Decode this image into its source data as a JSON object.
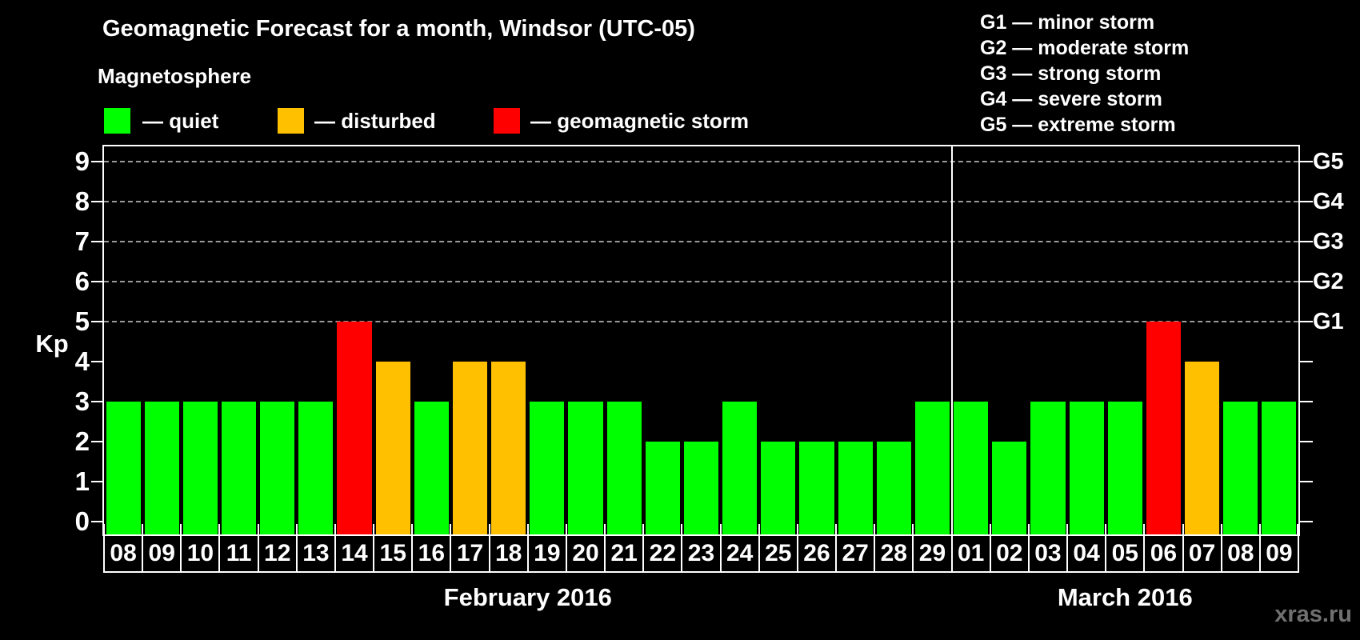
{
  "title": "Geomagnetic Forecast for a month, Windsor (UTC-05)",
  "magnetosphere_legend": {
    "heading": "Magnetosphere",
    "items": [
      {
        "id": "quiet",
        "label": "— quiet",
        "color": "#00ff00"
      },
      {
        "id": "disturbed",
        "label": "— disturbed",
        "color": "#ffc000"
      },
      {
        "id": "storm",
        "label": "— geomagnetic storm",
        "color": "#ff0000"
      }
    ]
  },
  "storm_scale_legend": [
    "G1 — minor storm",
    "G2 — moderate storm",
    "G3 — strong storm",
    "G4 — severe storm",
    "G5 — extreme storm"
  ],
  "watermark": "xras.ru",
  "chart_data": {
    "type": "bar",
    "title": "Geomagnetic Forecast for a month, Windsor (UTC-05)",
    "ylabel": "Kp",
    "ylim": [
      0,
      9
    ],
    "y_ticks": [
      0,
      1,
      2,
      3,
      4,
      5,
      6,
      7,
      8,
      9
    ],
    "gridlines_at_kp": [
      5,
      6,
      7,
      8,
      9
    ],
    "grid": "dashed horizontal at G-storm levels only",
    "legend_position": "top",
    "right_axis": [
      {
        "label": "G1",
        "kp": 5
      },
      {
        "label": "G2",
        "kp": 6
      },
      {
        "label": "G3",
        "kp": 7
      },
      {
        "label": "G4",
        "kp": 8
      },
      {
        "label": "G5",
        "kp": 9
      }
    ],
    "status_colors": {
      "quiet": "#00ff00",
      "disturbed": "#ffc000",
      "storm": "#ff0000"
    },
    "months": [
      {
        "label": "February 2016",
        "days": [
          "08",
          "09",
          "10",
          "11",
          "12",
          "13",
          "14",
          "15",
          "16",
          "17",
          "18",
          "19",
          "20",
          "21",
          "22",
          "23",
          "24",
          "25",
          "26",
          "27",
          "28",
          "29"
        ],
        "kp": [
          3,
          3,
          3,
          3,
          3,
          3,
          5,
          4,
          3,
          4,
          4,
          3,
          3,
          3,
          2,
          2,
          3,
          2,
          2,
          2,
          2,
          3
        ],
        "status": [
          "quiet",
          "quiet",
          "quiet",
          "quiet",
          "quiet",
          "quiet",
          "storm",
          "disturbed",
          "quiet",
          "disturbed",
          "disturbed",
          "quiet",
          "quiet",
          "quiet",
          "quiet",
          "quiet",
          "quiet",
          "quiet",
          "quiet",
          "quiet",
          "quiet",
          "quiet"
        ]
      },
      {
        "label": "March 2016",
        "days": [
          "01",
          "02",
          "03",
          "04",
          "05",
          "06",
          "07",
          "08",
          "09"
        ],
        "kp": [
          3,
          2,
          3,
          3,
          3,
          5,
          4,
          3,
          3
        ],
        "status": [
          "quiet",
          "quiet",
          "quiet",
          "quiet",
          "quiet",
          "storm",
          "disturbed",
          "quiet",
          "quiet"
        ]
      }
    ]
  }
}
